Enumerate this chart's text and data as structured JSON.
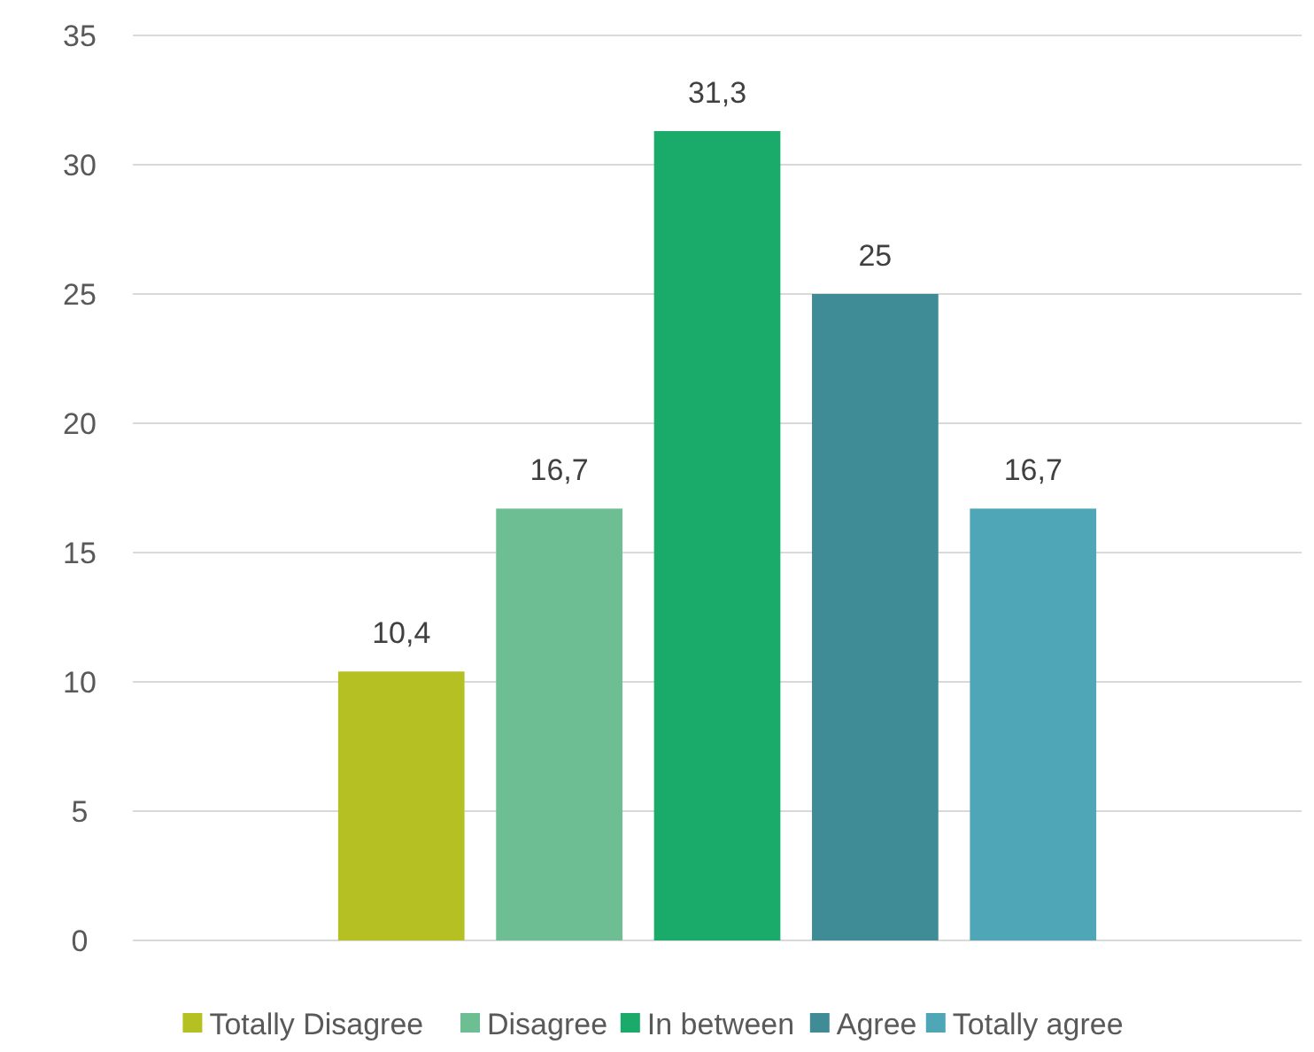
{
  "chart_data": {
    "type": "bar",
    "categories": [
      null
    ],
    "series": [
      {
        "name": "Totally Disagree",
        "color": "#b5c122",
        "values": [
          10.4
        ],
        "value_labels": [
          "10,4"
        ]
      },
      {
        "name": "Disagree",
        "color": "#6dbf93",
        "values": [
          16.7
        ],
        "value_labels": [
          "16,7"
        ]
      },
      {
        "name": "In between",
        "color": "#1aab6b",
        "values": [
          31.3
        ],
        "value_labels": [
          "31,3"
        ]
      },
      {
        "name": "Agree",
        "color": "#3f8c96",
        "values": [
          25
        ],
        "value_labels": [
          "25"
        ]
      },
      {
        "name": "Totally agree",
        "color": "#4fa6b6",
        "values": [
          16.7
        ],
        "value_labels": [
          "16,7"
        ]
      }
    ],
    "ylim": [
      0,
      35
    ],
    "yticks": [
      0,
      5,
      10,
      15,
      20,
      25,
      30,
      35
    ],
    "grid": "y",
    "legend": "bottom"
  }
}
